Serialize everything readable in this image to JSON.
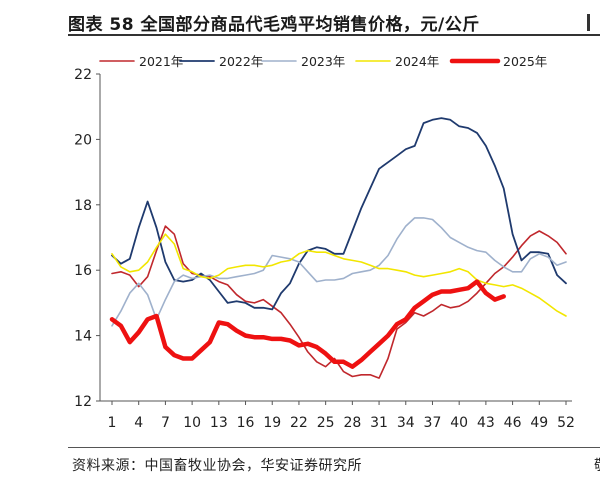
{
  "figure": {
    "title": "图表 58  全国部分商品代毛鸡平均销售价格，元/公斤",
    "source": "资料来源：中国畜牧业协会，华安证券研究所",
    "source_edge": "敬"
  },
  "chart_data": {
    "type": "line",
    "title": "图表 58  全国部分商品代毛鸡平均销售价格，元/公斤",
    "xlabel": "",
    "ylabel": "",
    "xlim": [
      1,
      52
    ],
    "ylim": [
      12,
      22
    ],
    "x_ticks": [
      1,
      4,
      7,
      10,
      13,
      16,
      19,
      22,
      25,
      28,
      31,
      34,
      37,
      40,
      43,
      46,
      49,
      52
    ],
    "y_ticks": [
      12,
      14,
      16,
      18,
      20,
      22
    ],
    "grid": false,
    "legend_position": "top",
    "series": [
      {
        "name": "2021年",
        "color": "#c0282d",
        "width": 1.6,
        "values": [
          15.9,
          15.95,
          15.85,
          15.5,
          15.8,
          16.6,
          17.35,
          17.1,
          16.2,
          15.9,
          15.85,
          15.8,
          15.65,
          15.55,
          15.25,
          15.05,
          15.0,
          15.1,
          14.9,
          14.7,
          14.35,
          13.95,
          13.5,
          13.2,
          13.05,
          13.3,
          12.9,
          12.75,
          12.8,
          12.8,
          12.7,
          13.3,
          14.2,
          14.4,
          14.7,
          14.6,
          14.75,
          14.95,
          14.85,
          14.9,
          15.05,
          15.3,
          15.6,
          15.9,
          16.1,
          16.4,
          16.75,
          17.05,
          17.2,
          17.05,
          16.85,
          16.5
        ]
      },
      {
        "name": "2022年",
        "color": "#1f3a6e",
        "width": 1.8,
        "values": [
          16.45,
          16.2,
          16.35,
          17.3,
          18.1,
          17.3,
          16.25,
          15.7,
          15.65,
          15.7,
          15.9,
          15.7,
          15.35,
          15.0,
          15.05,
          15.0,
          14.85,
          14.85,
          14.8,
          15.3,
          15.6,
          16.2,
          16.6,
          16.7,
          16.65,
          16.5,
          16.5,
          17.2,
          17.9,
          18.5,
          19.1,
          19.3,
          19.5,
          19.7,
          19.8,
          20.5,
          20.6,
          20.65,
          20.6,
          20.4,
          20.35,
          20.2,
          19.8,
          19.2,
          18.5,
          17.1,
          16.3,
          16.55,
          16.55,
          16.5,
          15.85,
          15.6
        ]
      },
      {
        "name": "2023年",
        "color": "#9fb1cc",
        "width": 1.6,
        "values": [
          14.3,
          14.75,
          15.3,
          15.6,
          15.25,
          14.5,
          15.1,
          15.65,
          15.85,
          15.75,
          15.8,
          15.85,
          15.75,
          15.75,
          15.8,
          15.85,
          15.9,
          16.0,
          16.45,
          16.4,
          16.35,
          16.25,
          15.95,
          15.65,
          15.7,
          15.7,
          15.75,
          15.9,
          15.95,
          16.0,
          16.15,
          16.45,
          16.95,
          17.35,
          17.6,
          17.6,
          17.55,
          17.3,
          17.0,
          16.85,
          16.7,
          16.6,
          16.55,
          16.3,
          16.1,
          15.95,
          15.95,
          16.35,
          16.5,
          16.4,
          16.15,
          16.25
        ]
      },
      {
        "name": "2024年",
        "color": "#f2e600",
        "width": 1.6,
        "values": [
          16.5,
          16.1,
          15.95,
          16.0,
          16.25,
          16.7,
          17.1,
          16.8,
          16.05,
          15.95,
          15.8,
          15.75,
          15.85,
          16.05,
          16.1,
          16.15,
          16.15,
          16.1,
          16.15,
          16.25,
          16.3,
          16.5,
          16.6,
          16.55,
          16.55,
          16.45,
          16.35,
          16.3,
          16.25,
          16.15,
          16.05,
          16.05,
          16.0,
          15.95,
          15.85,
          15.8,
          15.85,
          15.9,
          15.95,
          16.05,
          15.95,
          15.7,
          15.6,
          15.55,
          15.5,
          15.55,
          15.45,
          15.3,
          15.15,
          14.95,
          14.75,
          14.6
        ]
      },
      {
        "name": "2025年",
        "color": "#ee1111",
        "width": 4.5,
        "values": [
          14.5,
          14.3,
          13.8,
          14.1,
          14.5,
          14.6,
          13.65,
          13.4,
          13.3,
          13.3,
          13.55,
          13.8,
          14.4,
          14.35,
          14.15,
          14.0,
          13.95,
          13.95,
          13.9,
          13.9,
          13.85,
          13.7,
          13.75,
          13.65,
          13.45,
          13.2,
          13.2,
          13.05,
          13.25,
          13.5,
          13.75,
          14.0,
          14.35,
          14.5,
          14.85,
          15.05,
          15.25,
          15.35,
          15.35,
          15.4,
          15.45,
          15.65,
          15.3,
          15.1,
          15.2
        ]
      }
    ]
  }
}
